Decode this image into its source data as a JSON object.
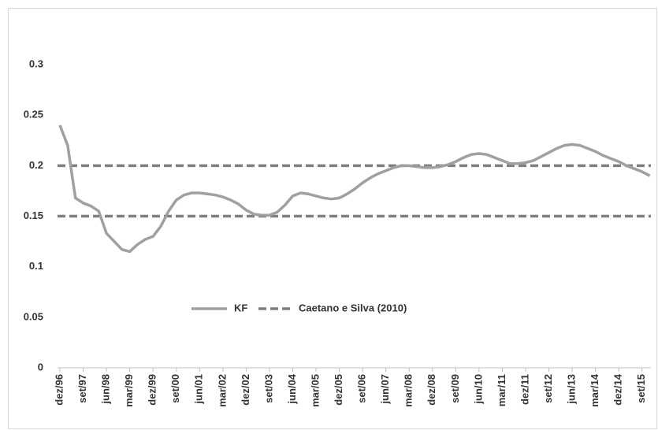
{
  "chart_data": {
    "type": "line",
    "categories": [
      "dez/96",
      null,
      null,
      "set/97",
      null,
      null,
      "jun/98",
      null,
      null,
      "mar/99",
      null,
      null,
      "dez/99",
      null,
      null,
      "set/00",
      null,
      null,
      "jun/01",
      null,
      null,
      "mar/02",
      null,
      null,
      "dez/02",
      null,
      null,
      "set/03",
      null,
      null,
      "jun/04",
      null,
      null,
      "mar/05",
      null,
      null,
      "dez/05",
      null,
      null,
      "set/06",
      null,
      null,
      "jun/07",
      null,
      null,
      "mar/08",
      null,
      null,
      "dez/08",
      null,
      null,
      "set/09",
      null,
      null,
      "jun/10",
      null,
      null,
      "mar/11",
      null,
      null,
      "dez/11",
      null,
      null,
      "set/12",
      null,
      null,
      "jun/13",
      null,
      null,
      "mar/14",
      null,
      null,
      "dez/14",
      null,
      null,
      "set/15",
      null
    ],
    "series": [
      {
        "name": "KF",
        "color": "#a0a0a0",
        "values": [
          0.24,
          0.22,
          0.168,
          0.163,
          0.16,
          0.155,
          0.133,
          0.125,
          0.117,
          0.115,
          0.122,
          0.127,
          0.13,
          0.14,
          0.155,
          0.166,
          0.171,
          0.173,
          0.173,
          0.172,
          0.171,
          0.169,
          0.166,
          0.162,
          0.156,
          0.152,
          0.151,
          0.151,
          0.154,
          0.161,
          0.17,
          0.173,
          0.172,
          0.17,
          0.168,
          0.167,
          0.168,
          0.172,
          0.177,
          0.183,
          0.188,
          0.192,
          0.195,
          0.198,
          0.2,
          0.2,
          0.199,
          0.198,
          0.198,
          0.199,
          0.201,
          0.204,
          0.208,
          0.211,
          0.212,
          0.211,
          0.208,
          0.205,
          0.202,
          0.202,
          0.203,
          0.205,
          0.209,
          0.213,
          0.217,
          0.22,
          0.221,
          0.22,
          0.217,
          0.214,
          0.21,
          0.207,
          0.204,
          0.2,
          0.197,
          0.194,
          0.19
        ]
      }
    ],
    "reference_lines": {
      "name": "Caetano e Silva (2010)",
      "color": "#7f7f7f",
      "values": [
        0.2,
        0.15
      ]
    },
    "ylim": [
      0,
      0.3
    ],
    "yticks": [
      0,
      0.05,
      0.1,
      0.15,
      0.2,
      0.25,
      0.3
    ],
    "grid": false
  }
}
